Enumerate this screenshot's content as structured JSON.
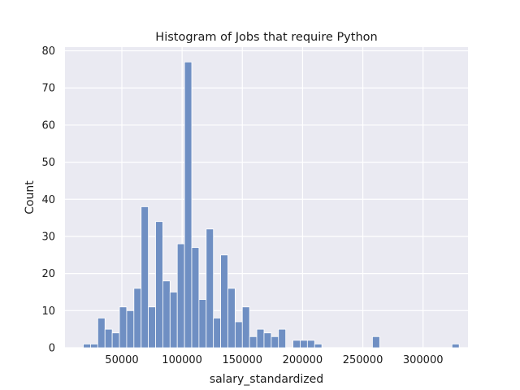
{
  "chart_data": {
    "type": "bar",
    "title": "Histogram of Jobs that require Python",
    "xlabel": "salary_standardized",
    "ylabel": "Count",
    "xlim": [
      2800,
      337300
    ],
    "ylim": [
      0,
      81
    ],
    "xticks": [
      50000,
      100000,
      150000,
      200000,
      250000,
      300000
    ],
    "yticks": [
      0,
      10,
      20,
      30,
      40,
      50,
      60,
      70,
      80
    ],
    "grid": true,
    "background": "#eaeaf2",
    "bar_color": "#6f8fc3",
    "bar_edge_color": "#ffffff",
    "bins": {
      "start": 18000,
      "width": 6000,
      "counts": [
        1,
        1,
        8,
        5,
        4,
        11,
        10,
        16,
        38,
        11,
        34,
        18,
        15,
        28,
        77,
        27,
        13,
        32,
        8,
        25,
        16,
        7,
        11,
        3,
        5,
        4,
        3,
        5,
        0,
        2,
        2,
        2,
        1,
        0,
        0,
        0,
        0,
        0,
        0,
        0,
        3,
        0,
        0,
        0,
        0,
        0,
        0,
        0,
        0,
        0,
        0,
        1
      ]
    }
  }
}
